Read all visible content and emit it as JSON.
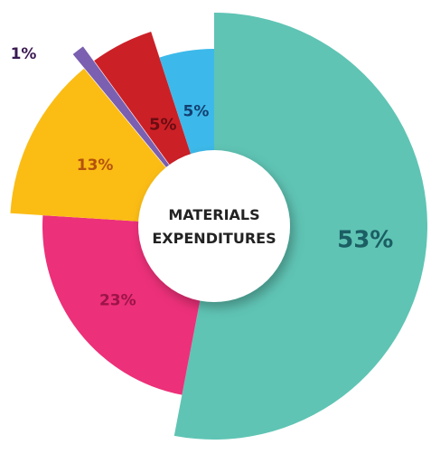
{
  "chart_data": {
    "type": "pie",
    "title": "MATERIALS EXPENDITURES",
    "title_lines": [
      "MATERIALS",
      "EXPENDITURES"
    ],
    "slices": [
      {
        "value": 53,
        "label": "53%",
        "color": "#5fc4b4",
        "label_color": "#1b5e63"
      },
      {
        "value": 23,
        "label": "23%",
        "color": "#ec3079",
        "label_color": "#9c1448"
      },
      {
        "value": 13,
        "label": "13%",
        "color": "#fbbc14",
        "label_color": "#b4520c"
      },
      {
        "value": 1,
        "label": "1%",
        "color": "#7b5fb0",
        "label_color": "#3a1a52"
      },
      {
        "value": 5,
        "label": "5%",
        "color": "#cc2027",
        "label_color": "#6a0d12"
      },
      {
        "value": 5,
        "label": "5%",
        "color": "#3cb9ea",
        "label_color": "#133f72"
      }
    ],
    "style": "rose donut, segments start at 12 o'clock going clockwise, segment radius varies per slice, 1% slice exploded outward",
    "center_circle_color": "#ffffff"
  }
}
